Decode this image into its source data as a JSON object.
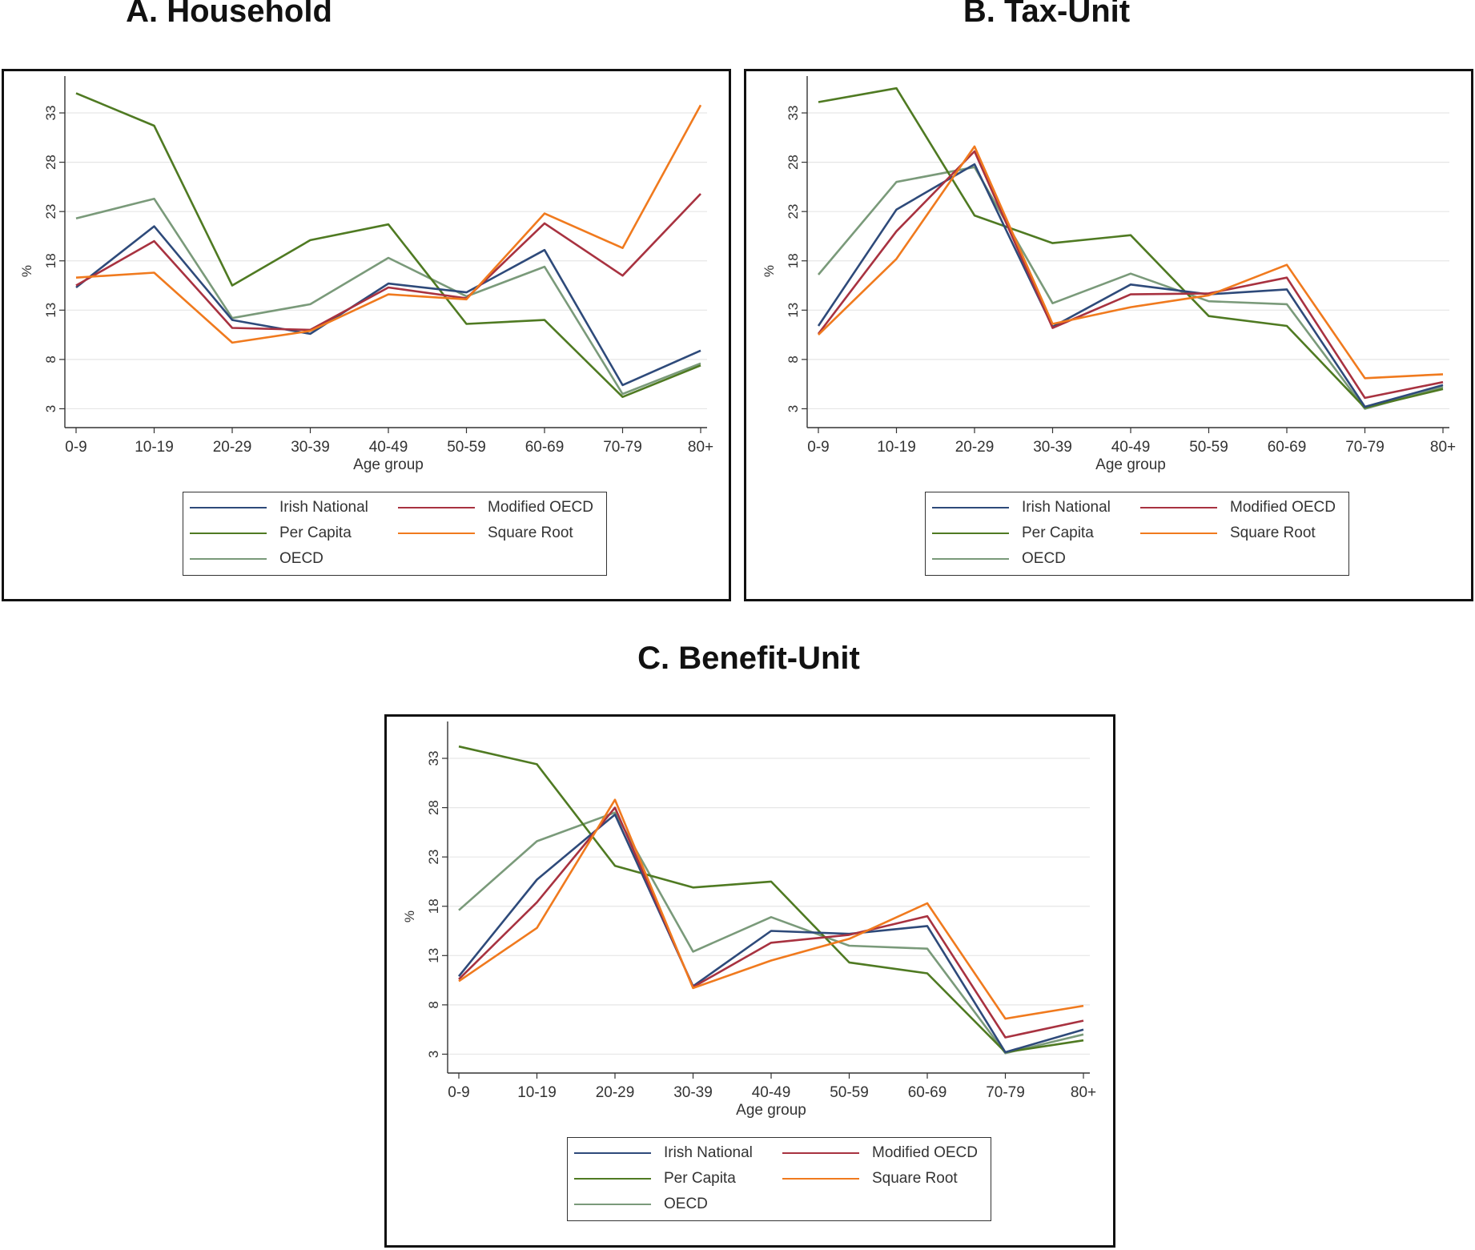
{
  "chart_data": [
    {
      "type": "line",
      "title": "A. Household",
      "xlabel": "Age group",
      "ylabel": "%",
      "categories": [
        "0-9",
        "10-19",
        "20-29",
        "30-39",
        "40-49",
        "50-59",
        "60-69",
        "70-79",
        "80+"
      ],
      "yticks": [
        3,
        8,
        13,
        18,
        23,
        28,
        33
      ],
      "ylim": [
        1.9,
        35.6
      ],
      "grid": true,
      "legend_position": "bottom",
      "series": [
        {
          "name": "Irish National",
          "color": "#2e4a7a",
          "values": [
            15.3,
            21.5,
            12.0,
            10.6,
            15.7,
            14.8,
            19.1,
            5.4,
            8.9
          ]
        },
        {
          "name": "Modified OECD",
          "color": "#a83240",
          "values": [
            15.5,
            20.0,
            11.2,
            11.0,
            15.3,
            14.2,
            21.8,
            16.5,
            24.8
          ]
        },
        {
          "name": "Per Capita",
          "color": "#4f7a22",
          "values": [
            35.0,
            31.7,
            15.5,
            20.1,
            21.7,
            11.6,
            12.0,
            4.2,
            7.4
          ]
        },
        {
          "name": "Square Root",
          "color": "#f07a1e",
          "values": [
            16.3,
            16.8,
            9.7,
            10.9,
            14.6,
            14.1,
            22.8,
            19.3,
            33.8
          ]
        },
        {
          "name": "OECD",
          "color": "#7a9a7a",
          "values": [
            22.3,
            24.3,
            12.2,
            13.6,
            18.3,
            14.4,
            17.4,
            4.5,
            7.6
          ]
        }
      ]
    },
    {
      "type": "line",
      "title": "B. Tax-Unit",
      "xlabel": "Age group",
      "ylabel": "%",
      "categories": [
        "0-9",
        "10-19",
        "20-29",
        "30-39",
        "40-49",
        "50-59",
        "60-69",
        "70-79",
        "80+"
      ],
      "yticks": [
        3,
        8,
        13,
        18,
        23,
        28,
        33
      ],
      "ylim": [
        1.9,
        35.6
      ],
      "grid": true,
      "legend_position": "bottom",
      "series": [
        {
          "name": "Irish National",
          "color": "#2e4a7a",
          "values": [
            11.4,
            23.2,
            27.8,
            11.3,
            15.6,
            14.6,
            15.1,
            3.2,
            5.4
          ]
        },
        {
          "name": "Modified OECD",
          "color": "#a83240",
          "values": [
            10.6,
            21.0,
            29.1,
            11.2,
            14.6,
            14.7,
            16.3,
            4.1,
            5.7
          ]
        },
        {
          "name": "Per Capita",
          "color": "#4f7a22",
          "values": [
            34.1,
            35.5,
            22.6,
            19.8,
            20.6,
            12.4,
            11.4,
            3.1,
            5.0
          ]
        },
        {
          "name": "Square Root",
          "color": "#f07a1e",
          "values": [
            10.5,
            18.2,
            29.6,
            11.6,
            13.3,
            14.5,
            17.6,
            6.1,
            6.5
          ]
        },
        {
          "name": "OECD",
          "color": "#7a9a7a",
          "values": [
            16.6,
            26.0,
            27.5,
            13.7,
            16.7,
            13.9,
            13.6,
            3.0,
            5.2
          ]
        }
      ]
    },
    {
      "type": "line",
      "title": "C. Benefit-Unit",
      "xlabel": "Age group",
      "ylabel": "%",
      "categories": [
        "0-9",
        "10-19",
        "20-29",
        "30-39",
        "40-49",
        "50-59",
        "60-69",
        "70-79",
        "80+"
      ],
      "yticks": [
        3,
        8,
        13,
        18,
        23,
        28,
        33
      ],
      "ylim": [
        1.9,
        35.6
      ],
      "grid": true,
      "legend_position": "bottom",
      "series": [
        {
          "name": "Irish National",
          "color": "#2e4a7a",
          "values": [
            10.9,
            20.7,
            27.3,
            9.9,
            15.5,
            15.2,
            16.0,
            3.2,
            5.5
          ]
        },
        {
          "name": "Modified OECD",
          "color": "#a83240",
          "values": [
            10.6,
            18.4,
            28.0,
            9.8,
            14.3,
            15.1,
            17.0,
            4.7,
            6.4
          ]
        },
        {
          "name": "Per Capita",
          "color": "#4f7a22",
          "values": [
            34.2,
            32.4,
            22.1,
            19.9,
            20.5,
            12.3,
            11.2,
            3.2,
            4.4
          ]
        },
        {
          "name": "Square Root",
          "color": "#f07a1e",
          "values": [
            10.4,
            15.8,
            28.8,
            9.7,
            12.5,
            14.7,
            18.3,
            6.6,
            7.9
          ]
        },
        {
          "name": "OECD",
          "color": "#7a9a7a",
          "values": [
            17.6,
            24.6,
            27.5,
            13.4,
            16.9,
            14.0,
            13.7,
            3.1,
            5.0
          ]
        }
      ]
    }
  ]
}
